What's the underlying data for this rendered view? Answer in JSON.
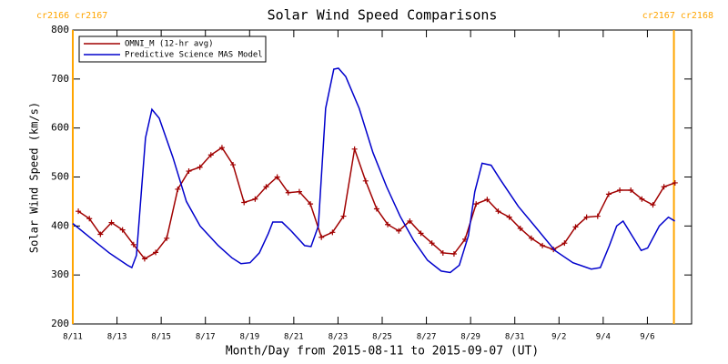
{
  "chart_data": {
    "type": "line",
    "title": "Solar Wind Speed Comparisons",
    "x_label": "Month/Day from 2015-08-11 to 2015-09-07 (UT)",
    "y_label": "Solar Wind Speed (km/s)",
    "xlim": [
      0,
      28
    ],
    "ylim": [
      200,
      800
    ],
    "xticks": [
      {
        "value": 0,
        "label": "8/11"
      },
      {
        "value": 2,
        "label": "8/13"
      },
      {
        "value": 4,
        "label": "8/15"
      },
      {
        "value": 6,
        "label": "8/17"
      },
      {
        "value": 8,
        "label": "8/19"
      },
      {
        "value": 10,
        "label": "8/21"
      },
      {
        "value": 12,
        "label": "8/23"
      },
      {
        "value": 14,
        "label": "8/25"
      },
      {
        "value": 16,
        "label": "8/27"
      },
      {
        "value": 18,
        "label": "8/29"
      },
      {
        "value": 20,
        "label": "8/31"
      },
      {
        "value": 22,
        "label": "9/2"
      },
      {
        "value": 24,
        "label": "9/4"
      },
      {
        "value": 26,
        "label": "9/6"
      }
    ],
    "yticks": [
      200,
      300,
      400,
      500,
      600,
      700,
      800
    ],
    "legend": "upper left",
    "annotations": [
      {
        "x": 0,
        "label": "cr2166 cr2167",
        "color": "#ffa500"
      },
      {
        "x": 27.2,
        "label": "cr2167 cr2168",
        "color": "#ffa500"
      }
    ],
    "series": [
      {
        "name": "OMNI_M (12-hr avg)",
        "color": "#a00000",
        "markers": true,
        "x": [
          0.25,
          0.75,
          1.25,
          1.75,
          2.25,
          2.75,
          3.25,
          3.75,
          4.25,
          4.75,
          5.25,
          5.75,
          6.25,
          6.75,
          7.25,
          7.75,
          8.25,
          8.75,
          9.25,
          9.75,
          10.25,
          10.75,
          11.25,
          11.75,
          12.25,
          12.75,
          13.25,
          13.75,
          14.25,
          14.75,
          15.25,
          15.75,
          16.25,
          16.75,
          17.25,
          17.75,
          18.25,
          18.75,
          19.25,
          19.75,
          20.25,
          20.75,
          21.25,
          21.75,
          22.25,
          22.75,
          23.25,
          23.75,
          24.25,
          24.75,
          25.25,
          25.75,
          26.25,
          26.75,
          27.25
        ],
        "values": [
          430,
          415,
          383,
          407,
          392,
          362,
          333,
          346,
          375,
          475,
          512,
          520,
          545,
          560,
          525,
          448,
          455,
          480,
          500,
          468,
          470,
          445,
          377,
          387,
          420,
          557,
          492,
          435,
          403,
          390,
          410,
          385,
          365,
          345,
          343,
          373,
          445,
          454,
          430,
          418,
          395,
          375,
          360,
          352,
          365,
          398,
          418,
          420,
          465,
          473,
          473,
          455,
          443,
          480,
          488
        ]
      },
      {
        "name": "Predictive Science MAS Model",
        "color": "#0000cc",
        "markers": false,
        "x": [
          0,
          0.82,
          1.65,
          2.47,
          2.67,
          2.88,
          3.29,
          3.58,
          3.91,
          4.53,
          5.14,
          5.76,
          6.58,
          7.2,
          7.61,
          8.02,
          8.44,
          8.85,
          9.05,
          9.47,
          9.88,
          10.49,
          10.78,
          11.11,
          11.44,
          11.81,
          12.02,
          12.35,
          12.96,
          13.58,
          14.2,
          14.81,
          15.43,
          16.05,
          16.67,
          17.08,
          17.49,
          17.9,
          18.19,
          18.52,
          18.93,
          19.34,
          20.16,
          20.99,
          21.81,
          22.63,
          23.46,
          23.87,
          24.28,
          24.61,
          24.9,
          25.31,
          25.72,
          26.01,
          26.54,
          26.95,
          27.24
        ],
        "values": [
          405,
          375,
          345,
          320,
          315,
          340,
          580,
          638,
          620,
          540,
          450,
          400,
          360,
          335,
          323,
          325,
          345,
          385,
          408,
          408,
          390,
          360,
          358,
          400,
          640,
          720,
          722,
          705,
          640,
          550,
          480,
          420,
          370,
          330,
          308,
          305,
          320,
          380,
          470,
          528,
          524,
          495,
          440,
          395,
          350,
          325,
          312,
          315,
          360,
          400,
          410,
          380,
          350,
          355,
          400,
          418,
          410
        ]
      }
    ]
  }
}
